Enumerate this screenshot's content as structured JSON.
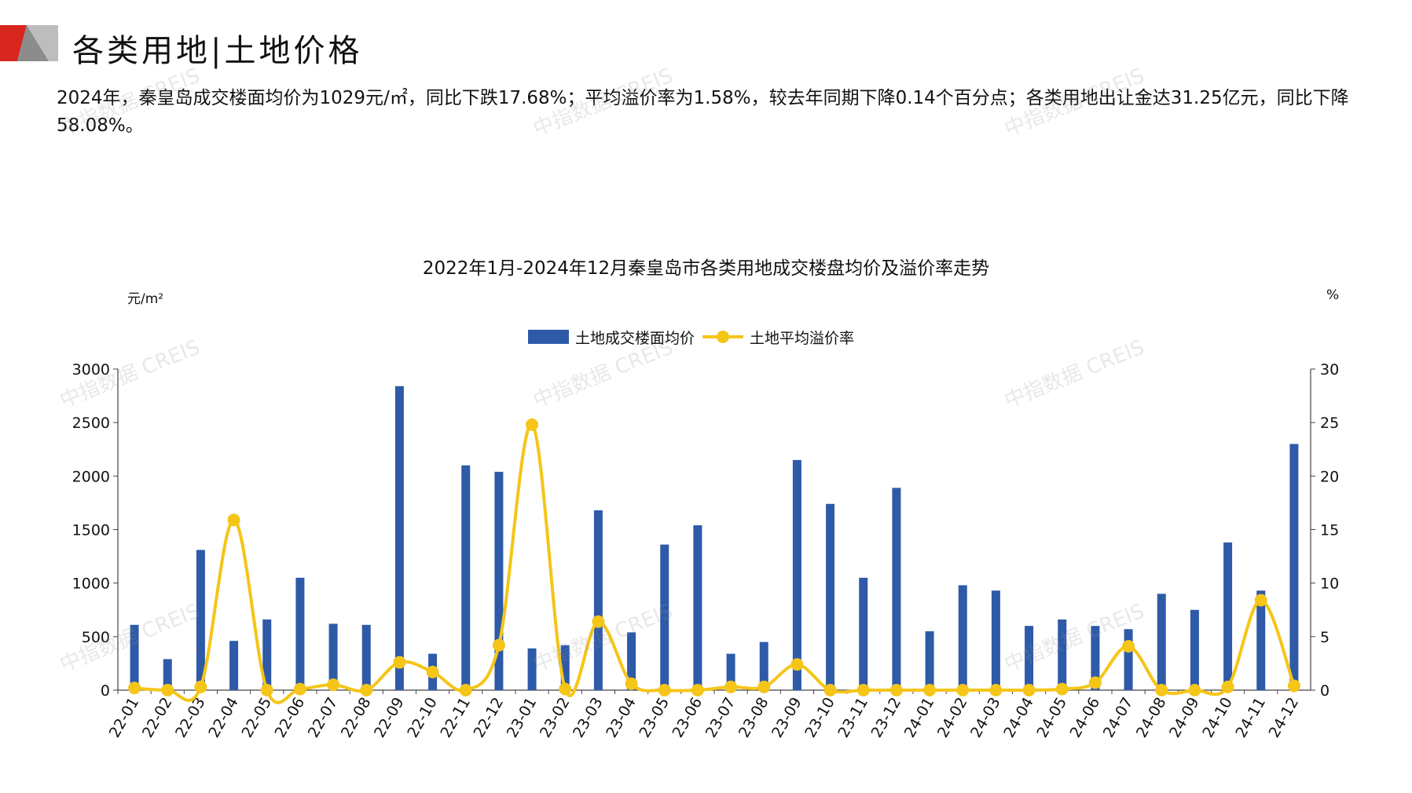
{
  "header": {
    "title": "各类用地|土地价格"
  },
  "summary": "2024年，秦皇岛成交楼面均价为1029元/㎡，同比下跌17.68%；平均溢价率为1.58%，较去年同期下降0.14个百分点；各类用地出让金达31.25亿元，同比下降58.08%。",
  "watermark_text": "中指数据 CREIS",
  "colors": {
    "bar": "#2e5aa8",
    "line": "#f5c518",
    "logo_red": "#d7261e",
    "logo_gray": "#bdbdbd"
  },
  "chart_data": {
    "type": "bar",
    "title": "2022年1月-2024年12月秦皇岛市各类用地成交楼盘均价及溢价率走势",
    "ylabel_left": "元/m²",
    "ylabel_right": "%",
    "ylim_left": [
      0,
      3000
    ],
    "ylim_right": [
      0,
      30
    ],
    "yticks_left": [
      "0",
      "500",
      "1000",
      "1500",
      "2000",
      "2500",
      "3000"
    ],
    "yticks_right": [
      "0",
      "5",
      "10",
      "15",
      "20",
      "25",
      "30"
    ],
    "legend_position": "top-center",
    "grid": false,
    "categories": [
      "22-01",
      "22-02",
      "22-03",
      "22-04",
      "22-05",
      "22-06",
      "22-07",
      "22-08",
      "22-09",
      "22-10",
      "22-11",
      "22-12",
      "23-01",
      "23-02",
      "23-03",
      "23-04",
      "23-05",
      "23-06",
      "23-07",
      "23-08",
      "23-09",
      "23-10",
      "23-11",
      "23-12",
      "24-01",
      "24-02",
      "24-03",
      "24-04",
      "24-05",
      "24-06",
      "24-07",
      "24-08",
      "24-09",
      "24-10",
      "24-11",
      "24-12"
    ],
    "series": [
      {
        "name": "土地成交楼面均价",
        "type": "bar",
        "axis": "left",
        "values": [
          610,
          290,
          1310,
          460,
          660,
          1050,
          620,
          610,
          2840,
          340,
          2100,
          2040,
          390,
          420,
          1680,
          540,
          1360,
          1540,
          340,
          450,
          2150,
          1740,
          1050,
          1890,
          550,
          980,
          930,
          600,
          660,
          600,
          570,
          900,
          750,
          1380,
          930,
          2300
        ]
      },
      {
        "name": "土地平均溢价率",
        "type": "line",
        "axis": "right",
        "values": [
          0.2,
          0.0,
          0.3,
          15.9,
          0.0,
          0.1,
          0.5,
          0.0,
          2.6,
          1.7,
          0.0,
          4.2,
          24.8,
          0.1,
          6.4,
          0.6,
          0.0,
          0.0,
          0.3,
          0.3,
          2.4,
          0.0,
          0.0,
          0.0,
          0.0,
          0.0,
          0.0,
          0.0,
          0.1,
          0.7,
          4.1,
          0.0,
          0.0,
          0.3,
          8.4,
          0.4
        ]
      }
    ]
  }
}
